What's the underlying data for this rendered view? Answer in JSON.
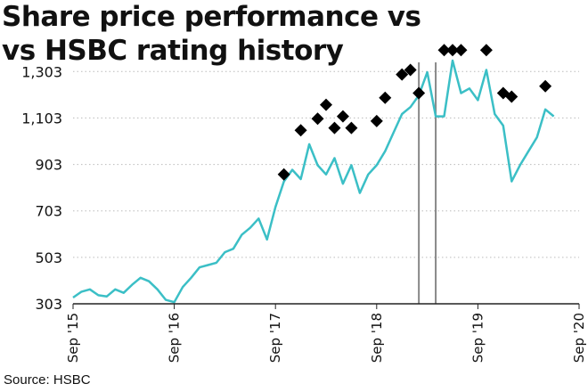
{
  "title_line1": "Share price performance vs",
  "title_line2": "vs HSBC rating history",
  "source": "Source: HSBC",
  "colors": {
    "line": "#3bbfc6",
    "marker": "#000000",
    "vline": "#888888",
    "axis": "#222222"
  },
  "chart_data": {
    "type": "line",
    "title": "Share price performance vs vs HSBC rating history",
    "xlabel": "",
    "ylabel": "",
    "ylim": [
      303,
      1400
    ],
    "xlim": [
      "2015-09",
      "2020-09"
    ],
    "yticks": [
      303,
      503,
      703,
      903,
      1103,
      1303
    ],
    "ytick_labels": [
      "303",
      "503",
      "703",
      "903",
      "1,103",
      "1,303"
    ],
    "xtick_labels": [
      "Sep '15",
      "Sep '16",
      "Sep '17",
      "Sep '18",
      "Sep '19",
      "Sep '20"
    ],
    "xticks": [
      "2015-09",
      "2016-09",
      "2017-09",
      "2018-09",
      "2019-09",
      "2020-09"
    ],
    "grid": "horizontal dotted",
    "series": [
      {
        "values": [
          [
            "2015-09",
            330
          ],
          [
            "2015-10",
            355
          ],
          [
            "2015-11",
            365
          ],
          [
            "2015-12",
            340
          ],
          [
            "2016-01",
            335
          ],
          [
            "2016-02",
            365
          ],
          [
            "2016-03",
            350
          ],
          [
            "2016-04",
            385
          ],
          [
            "2016-05",
            415
          ],
          [
            "2016-06",
            400
          ],
          [
            "2016-07",
            365
          ],
          [
            "2016-08",
            320
          ],
          [
            "2016-09",
            310
          ],
          [
            "2016-10",
            375
          ],
          [
            "2016-11",
            415
          ],
          [
            "2016-12",
            460
          ],
          [
            "2017-01",
            470
          ],
          [
            "2017-02",
            480
          ],
          [
            "2017-03",
            525
          ],
          [
            "2017-04",
            540
          ],
          [
            "2017-05",
            600
          ],
          [
            "2017-06",
            630
          ],
          [
            "2017-07",
            670
          ],
          [
            "2017-08",
            580
          ],
          [
            "2017-09",
            720
          ],
          [
            "2017-10",
            830
          ],
          [
            "2017-11",
            880
          ],
          [
            "2017-12",
            840
          ],
          [
            "2018-01",
            990
          ],
          [
            "2018-02",
            900
          ],
          [
            "2018-03",
            860
          ],
          [
            "2018-04",
            930
          ],
          [
            "2018-05",
            820
          ],
          [
            "2018-06",
            900
          ],
          [
            "2018-07",
            780
          ],
          [
            "2018-08",
            860
          ],
          [
            "2018-09",
            900
          ],
          [
            "2018-10",
            960
          ],
          [
            "2018-11",
            1040
          ],
          [
            "2018-12",
            1120
          ],
          [
            "2019-01",
            1150
          ],
          [
            "2019-02",
            1200
          ],
          [
            "2019-03",
            1300
          ],
          [
            "2019-04",
            1110
          ],
          [
            "2019-05",
            1110
          ],
          [
            "2019-06",
            1350
          ],
          [
            "2019-07",
            1210
          ],
          [
            "2019-08",
            1230
          ],
          [
            "2019-09",
            1180
          ],
          [
            "2019-10",
            1310
          ],
          [
            "2019-11",
            1120
          ],
          [
            "2019-12",
            1070
          ],
          [
            "2020-01",
            830
          ],
          [
            "2020-02",
            900
          ],
          [
            "2020-03",
            960
          ],
          [
            "2020-04",
            1020
          ],
          [
            "2020-05",
            1140
          ],
          [
            "2020-06",
            1110
          ]
        ]
      }
    ],
    "rating_markers": [
      [
        "2017-10",
        860
      ],
      [
        "2017-12",
        1050
      ],
      [
        "2018-02",
        1100
      ],
      [
        "2018-03",
        1160
      ],
      [
        "2018-04",
        1060
      ],
      [
        "2018-05",
        1110
      ],
      [
        "2018-06",
        1060
      ],
      [
        "2018-09",
        1090
      ],
      [
        "2018-10",
        1190
      ],
      [
        "2018-12",
        1290
      ],
      [
        "2019-01",
        1310
      ],
      [
        "2019-02",
        1210
      ],
      [
        "2019-05",
        1445
      ],
      [
        "2019-06",
        1410
      ],
      [
        "2019-07",
        1400
      ],
      [
        "2019-10",
        1420
      ],
      [
        "2019-12",
        1210
      ],
      [
        "2020-01",
        1195
      ],
      [
        "2020-05",
        1240
      ]
    ],
    "vertical_lines": [
      "2019-02",
      "2019-04"
    ]
  }
}
